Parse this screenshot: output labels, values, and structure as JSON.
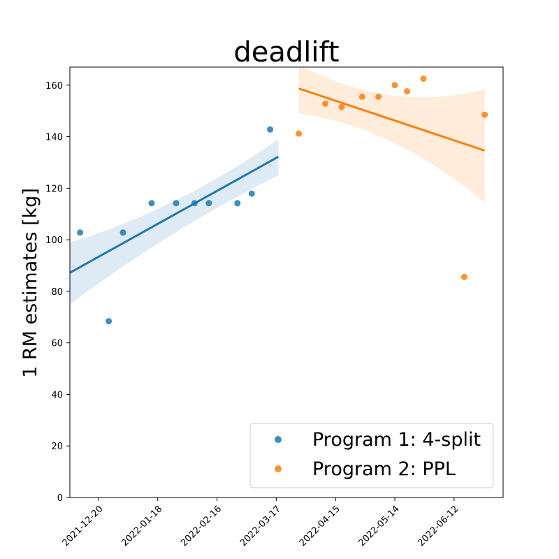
{
  "chart_data": {
    "type": "scatter",
    "title": "deadlift",
    "xlabel": "",
    "ylabel": "1 RM estimates [kg]",
    "ylim": [
      0,
      167
    ],
    "xlim": [
      "2021-12-06",
      "2022-07-06"
    ],
    "grid": false,
    "legend_position": "bottom-right",
    "x_ticks": [
      "2021-12-20",
      "2022-01-18",
      "2022-02-16",
      "2022-03-17",
      "2022-04-15",
      "2022-05-14",
      "2022-06-12"
    ],
    "y_ticks": [
      0,
      20,
      40,
      60,
      80,
      100,
      120,
      140,
      160
    ],
    "series": [
      {
        "name": "Program 1: 4-split",
        "color": "#1f77b4",
        "points": [
          {
            "x": "2021-12-11",
            "y": 102.8
          },
          {
            "x": "2021-12-25",
            "y": 68.4
          },
          {
            "x": "2022-01-01",
            "y": 102.8
          },
          {
            "x": "2022-01-15",
            "y": 114.2
          },
          {
            "x": "2022-01-27",
            "y": 114.2
          },
          {
            "x": "2022-02-05",
            "y": 114.2
          },
          {
            "x": "2022-02-12",
            "y": 114.2
          },
          {
            "x": "2022-02-26",
            "y": 114.2
          },
          {
            "x": "2022-03-05",
            "y": 117.9
          },
          {
            "x": "2022-03-14",
            "y": 142.8
          }
        ],
        "fit": {
          "x_start": "2021-12-06",
          "x_end": "2022-03-18",
          "y_start": 87.2,
          "y_end": 132.2,
          "ci_start": [
            75.0,
            99.0
          ],
          "ci_mid": [
            102.5,
            115.0
          ],
          "ci_end": [
            125.0,
            139.0
          ]
        }
      },
      {
        "name": "Program 2: PPL",
        "color": "#ff7f0e",
        "points": [
          {
            "x": "2022-03-28",
            "y": 141.2
          },
          {
            "x": "2022-04-10",
            "y": 152.8
          },
          {
            "x": "2022-04-18",
            "y": 151.5
          },
          {
            "x": "2022-04-28",
            "y": 155.5
          },
          {
            "x": "2022-05-06",
            "y": 155.5
          },
          {
            "x": "2022-05-14",
            "y": 160.0
          },
          {
            "x": "2022-05-20",
            "y": 157.6
          },
          {
            "x": "2022-05-28",
            "y": 162.5
          },
          {
            "x": "2022-06-17",
            "y": 85.6
          },
          {
            "x": "2022-06-27",
            "y": 148.5
          }
        ],
        "fit": {
          "x_start": "2022-03-28",
          "x_end": "2022-06-27",
          "y_start": 158.7,
          "y_end": 134.6,
          "ci_start": [
            149.0,
            168.0
          ],
          "ci_mid": [
            138.0,
            156.0
          ],
          "ci_end": [
            114.5,
            158.5
          ]
        }
      }
    ]
  }
}
